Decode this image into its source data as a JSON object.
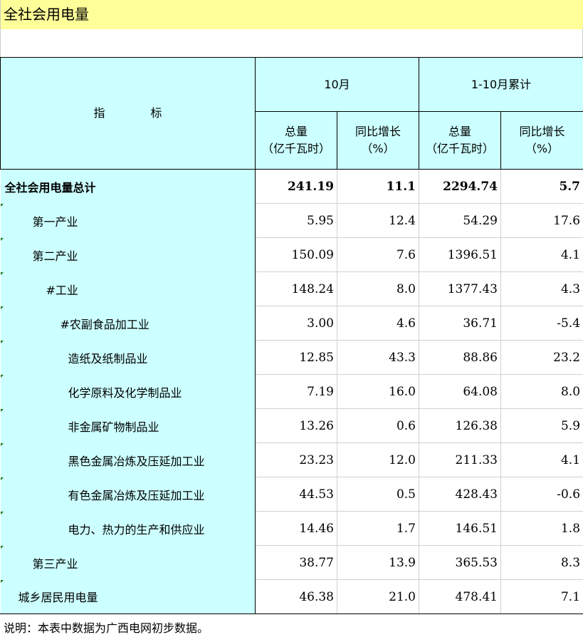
{
  "title": "全社会用电量",
  "header": {
    "indicator": "指　　　　标",
    "month": "10月",
    "cumulative": "1-10月累计",
    "total": "总量",
    "unit": "（亿千瓦时）",
    "yoy": "同比增长",
    "pct": "（%）"
  },
  "rows": [
    {
      "label": "全社会用电量总计",
      "indent": 0,
      "bold": true,
      "v": [
        "241.19",
        "11.1",
        "2294.74",
        "5.7"
      ]
    },
    {
      "label": "第一产业",
      "indent": 2,
      "v": [
        "5.95",
        "12.4",
        "54.29",
        "17.6"
      ]
    },
    {
      "label": "第二产业",
      "indent": 2,
      "v": [
        "150.09",
        "7.6",
        "1396.51",
        "4.1"
      ]
    },
    {
      "label": "#工业",
      "indent": 3,
      "v": [
        "148.24",
        "8.0",
        "1377.43",
        "4.3"
      ]
    },
    {
      "label": "#农副食品加工业",
      "indent": 4,
      "v": [
        "3.00",
        "4.6",
        "36.71",
        "-5.4"
      ]
    },
    {
      "label": "造纸及纸制品业",
      "indent": 5,
      "v": [
        "12.85",
        "43.3",
        "88.86",
        "23.2"
      ]
    },
    {
      "label": "化学原料及化学制品业",
      "indent": 5,
      "v": [
        "7.19",
        "16.0",
        "64.08",
        "8.0"
      ]
    },
    {
      "label": "非金属矿物制品业",
      "indent": 5,
      "v": [
        "13.26",
        "0.6",
        "126.38",
        "5.9"
      ]
    },
    {
      "label": "黑色金属冶炼及压延加工业",
      "indent": 5,
      "v": [
        "23.23",
        "12.0",
        "211.33",
        "4.1"
      ]
    },
    {
      "label": "有色金属冶炼及压延加工业",
      "indent": 5,
      "v": [
        "44.53",
        "0.5",
        "428.43",
        "-0.6"
      ]
    },
    {
      "label": "电力、热力的生产和供应业",
      "indent": 5,
      "v": [
        "14.46",
        "1.7",
        "146.51",
        "1.8"
      ]
    },
    {
      "label": "第三产业",
      "indent": 2,
      "v": [
        "38.77",
        "13.9",
        "365.53",
        "8.3"
      ]
    },
    {
      "label": "城乡居民用电量",
      "indent": 1,
      "v": [
        "46.38",
        "21.0",
        "478.41",
        "7.1"
      ]
    }
  ],
  "note": "说明：本表中数据为广西电网初步数据。"
}
